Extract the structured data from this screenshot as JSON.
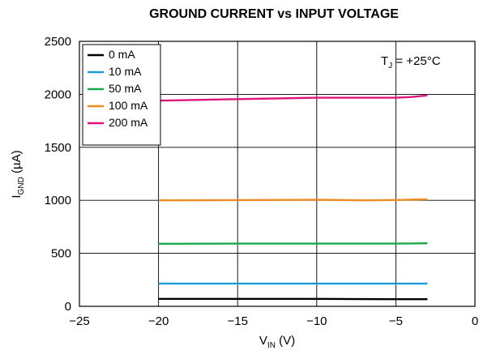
{
  "chart_data": {
    "type": "line",
    "title": "GROUND CURRENT vs INPUT VOLTAGE",
    "xlabel": {
      "main": "V",
      "sub": "IN",
      "unit": " (V)"
    },
    "ylabel": {
      "main": "I",
      "sub": "GND",
      "unit": " (µA)"
    },
    "xlim": [
      -25,
      0
    ],
    "ylim": [
      0,
      2500
    ],
    "x_ticks": [
      -25,
      -20,
      -15,
      -10,
      -5,
      0
    ],
    "x_tick_labels": [
      "−25",
      "−20",
      "−15",
      "−10",
      "−5",
      "0"
    ],
    "y_ticks": [
      0,
      500,
      1000,
      1500,
      2000,
      2500
    ],
    "y_tick_labels": [
      "0",
      "500",
      "1000",
      "1500",
      "2000",
      "2500"
    ],
    "grid": true,
    "legend_position": "top-left",
    "annotation": {
      "main": "T",
      "sub": "J",
      "rest": " = +25°C"
    },
    "series": [
      {
        "name": "0 mA",
        "color": "#000000",
        "x": [
          -20,
          -15,
          -10,
          -7,
          -5,
          -3
        ],
        "y": [
          70,
          70,
          70,
          68,
          67,
          67
        ]
      },
      {
        "name": "10 mA",
        "color": "#1b9bd7",
        "x": [
          -20,
          -15,
          -10,
          -5,
          -3
        ],
        "y": [
          215,
          215,
          215,
          215,
          215
        ]
      },
      {
        "name": "50 mA",
        "color": "#1aaa4b",
        "x": [
          -20,
          -15,
          -10,
          -5,
          -3
        ],
        "y": [
          590,
          592,
          592,
          592,
          595
        ]
      },
      {
        "name": "100 mA",
        "color": "#f08a24",
        "x": [
          -20,
          -15,
          -10,
          -7,
          -5,
          -3
        ],
        "y": [
          1000,
          1002,
          1005,
          1000,
          1003,
          1010
        ]
      },
      {
        "name": "200 mA",
        "color": "#e0177a",
        "x": [
          -20,
          -15,
          -10,
          -5,
          -4,
          -3
        ],
        "y": [
          1940,
          1955,
          1968,
          1968,
          1975,
          1990
        ]
      }
    ]
  }
}
